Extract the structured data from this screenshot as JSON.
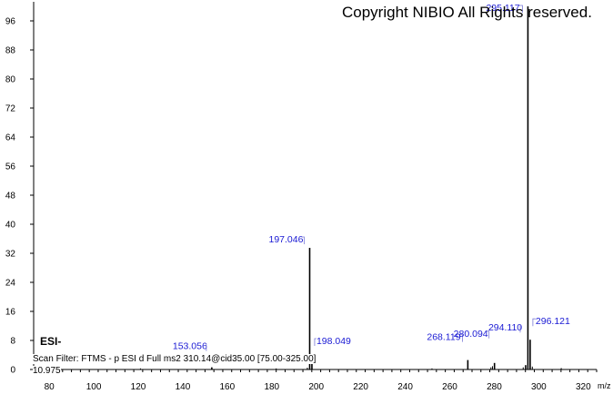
{
  "copyright": "Copyright NIBIO All Rights reserved.",
  "ionization_mode": "ESI-",
  "scan_filter": "Scan Filter: FTMS - p ESI d Full ms2 310.14@cid35.00 [75.00-325.00]",
  "retention_label": "10.975",
  "chart_data": {
    "type": "bar",
    "title": "",
    "xlabel": "m/z",
    "ylabel": "",
    "xlim": [
      73,
      326
    ],
    "ylim": [
      0,
      100
    ],
    "x_ticks": [
      80,
      100,
      120,
      140,
      160,
      180,
      200,
      220,
      240,
      260,
      280,
      300,
      320
    ],
    "y_ticks": [
      0,
      8,
      16,
      24,
      32,
      40,
      48,
      56,
      64,
      72,
      80,
      88,
      96
    ],
    "grid": false,
    "peaks": [
      {
        "mz": 153.056,
        "intensity": 0.6,
        "label": "153.056"
      },
      {
        "mz": 197.046,
        "intensity": 33.5,
        "label": "197.046"
      },
      {
        "mz": 198.049,
        "intensity": 2.0,
        "label": "198.049"
      },
      {
        "mz": 268.119,
        "intensity": 2.6,
        "label": "268.119"
      },
      {
        "mz": 280.094,
        "intensity": 1.8,
        "label": "280.094"
      },
      {
        "mz": 294.11,
        "intensity": 1.2,
        "label": "294.110"
      },
      {
        "mz": 295.117,
        "intensity": 100.0,
        "label": "295.117"
      },
      {
        "mz": 296.121,
        "intensity": 8.2,
        "label": "296.121"
      }
    ],
    "minor_peaks": [
      {
        "mz": 121.0,
        "intensity": 0.3
      },
      {
        "mz": 182.0,
        "intensity": 0.3
      },
      {
        "mz": 196.0,
        "intensity": 0.5
      },
      {
        "mz": 252.0,
        "intensity": 0.3
      },
      {
        "mz": 278.5,
        "intensity": 0.6
      },
      {
        "mz": 279.2,
        "intensity": 0.9
      },
      {
        "mz": 293.0,
        "intensity": 0.6
      },
      {
        "mz": 297.1,
        "intensity": 0.8
      },
      {
        "mz": 310.1,
        "intensity": 0.4
      }
    ]
  }
}
